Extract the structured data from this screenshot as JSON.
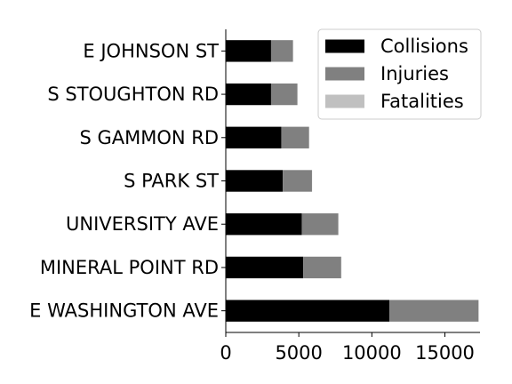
{
  "chart_data": {
    "type": "bar",
    "orientation": "horizontal",
    "stacked": true,
    "categories": [
      "E WASHINGTON AVE",
      "MINERAL POINT RD",
      "UNIVERSITY AVE",
      "S PARK ST",
      "S GAMMON RD",
      "S STOUGHTON RD",
      "E JOHNSON ST"
    ],
    "series": [
      {
        "name": "Collisions",
        "color": "#000000",
        "values": [
          11200,
          5300,
          5200,
          3900,
          3800,
          3100,
          3100
        ]
      },
      {
        "name": "Injuries",
        "color": "#808080",
        "values": [
          6100,
          2600,
          2500,
          2000,
          1900,
          1800,
          1500
        ]
      },
      {
        "name": "Fatalities",
        "color": "#c0c0c0",
        "values": [
          20,
          15,
          10,
          10,
          8,
          10,
          5
        ]
      }
    ],
    "x_ticks": [
      0,
      5000,
      10000,
      15000
    ],
    "xlim": [
      0,
      17500
    ],
    "legend": {
      "position": "top-right",
      "entries": [
        "Collisions",
        "Injuries",
        "Fatalities"
      ]
    },
    "grid": false,
    "title": "",
    "xlabel": "",
    "ylabel": ""
  }
}
